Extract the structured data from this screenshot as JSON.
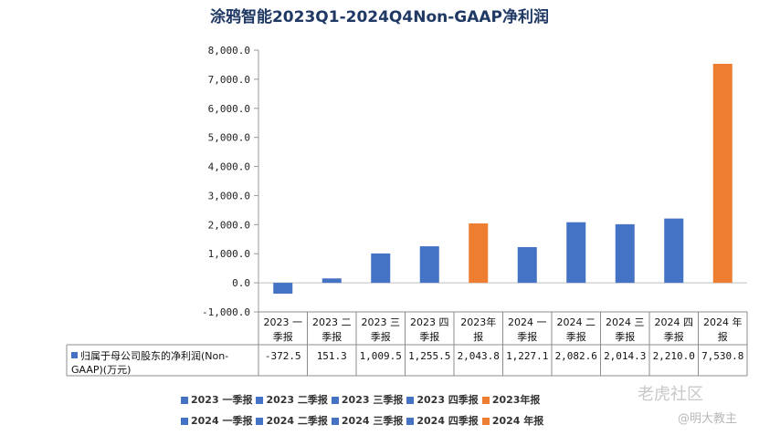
{
  "chart_data": {
    "type": "bar",
    "title": "涂鸦智能2023Q1-2024Q4Non-GAAP净利润",
    "categories": [
      [
        "2023 一",
        "季报"
      ],
      [
        "2023 二",
        "季报"
      ],
      [
        "2023 三",
        "季报"
      ],
      [
        "2023 四",
        "季报"
      ],
      [
        "2023年",
        "报"
      ],
      [
        "2024 一",
        "季报"
      ],
      [
        "2024 二",
        "季报"
      ],
      [
        "2024 三",
        "季报"
      ],
      [
        "2024 四",
        "季报"
      ],
      [
        "2024 年",
        "报"
      ]
    ],
    "values": [
      -372.5,
      151.3,
      1009.5,
      1255.5,
      2043.8,
      1227.1,
      2082.6,
      2014.3,
      2210.0,
      7530.8
    ],
    "value_labels": [
      "-372.5",
      "151.3",
      "1,009.5",
      "1,255.5",
      "2,043.8",
      "1,227.1",
      "2,082.6",
      "2,014.3",
      "2,210.0",
      "7,530.8"
    ],
    "colors": [
      "#4472c4",
      "#4472c4",
      "#4472c4",
      "#4472c4",
      "#ed7d31",
      "#4472c4",
      "#4472c4",
      "#4472c4",
      "#4472c4",
      "#ed7d31"
    ],
    "series_name_lines": [
      "归属于母公司股东的净利润(Non-",
      "GAAP)(万元)"
    ],
    "ylim": [
      -1000,
      8000
    ],
    "yticks": [
      -1000,
      0,
      1000,
      2000,
      3000,
      4000,
      5000,
      6000,
      7000,
      8000
    ],
    "ytick_labels": [
      "-1,000.0",
      "0.0",
      "1,000.0",
      "2,000.0",
      "3,000.0",
      "4,000.0",
      "5,000.0",
      "6,000.0",
      "7,000.0",
      "8,000.0"
    ],
    "legend_rows": [
      [
        "2023 一季报",
        "2023 二季报",
        "2023 三季报",
        "2023 四季报",
        "2023年报"
      ],
      [
        "2024 一季报",
        "2024 二季报",
        "2024 三季报",
        "2024 四季报",
        "2024 年报"
      ]
    ],
    "legend_placement": "bottom"
  },
  "watermark": {
    "brand": "老虎社区",
    "author": "@明大教主"
  }
}
